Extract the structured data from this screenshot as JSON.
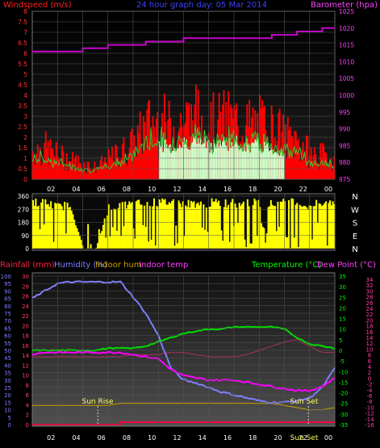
{
  "header": {
    "title": "24 hour graph day: 05 Mar 2014",
    "wind_label": "Windspeed (m/s)",
    "baro_label": "Barometer (hpa)"
  },
  "hour_ticks": [
    "02",
    "04",
    "06",
    "08",
    "10",
    "12",
    "14",
    "16",
    "18",
    "20",
    "22",
    "00"
  ],
  "colors": {
    "grid": "#555555",
    "wind": "#ff0000",
    "gust": "#33cc33",
    "baro": "#cc00cc",
    "direction": "#ffff00",
    "rain": "#ff0040",
    "humidity": "#8080ff",
    "indoor_hum": "#c8a000",
    "indoor_temp": "#aa3060",
    "temperature": "#00dd00",
    "dew_point": "#ff00ff"
  },
  "chart_data": [
    {
      "type": "area",
      "name": "wind-panel",
      "y_ticks_left": [
        "8",
        "7.5",
        "7",
        "6.5",
        "6",
        "5.5",
        "5",
        "4.5",
        "4",
        "3.5",
        "3",
        "2.5",
        "2",
        "1.5",
        "1",
        "0.5",
        "0"
      ],
      "y_ticks_right": [
        "1025",
        "1020",
        "1015",
        "1010",
        "1005",
        "1000",
        "995",
        "990",
        "985",
        "980",
        "975"
      ],
      "ylim_left": [
        0,
        8
      ],
      "ylim_right": [
        975,
        1025
      ],
      "series": [
        {
          "name": "Windspeed (m/s)",
          "x": [
            0,
            1,
            2,
            3,
            4,
            5,
            6,
            7,
            8,
            9,
            10,
            11,
            12,
            13,
            14,
            15,
            16,
            17,
            18,
            19,
            20,
            21,
            22,
            23,
            24
          ],
          "values": [
            1.5,
            1.6,
            1.2,
            1.0,
            0.8,
            0.6,
            1.0,
            1.4,
            1.8,
            2.8,
            3.0,
            2.6,
            3.0,
            3.2,
            2.8,
            3.0,
            3.0,
            2.8,
            2.8,
            2.6,
            2.2,
            2.0,
            1.3,
            1.2,
            1.0
          ]
        },
        {
          "name": "Barometer (hpa)",
          "x": [
            0,
            1,
            2,
            3,
            4,
            5,
            6,
            7,
            8,
            9,
            10,
            11,
            12,
            13,
            14,
            15,
            16,
            17,
            18,
            19,
            20,
            21,
            22,
            23,
            24
          ],
          "values": [
            1013,
            1013,
            1013,
            1013,
            1014,
            1014,
            1015,
            1015,
            1015,
            1016,
            1016,
            1016,
            1017,
            1017,
            1017,
            1017,
            1017,
            1017,
            1017,
            1018,
            1018,
            1019,
            1019,
            1020,
            1020
          ]
        }
      ]
    },
    {
      "type": "bar",
      "name": "direction-panel",
      "y_ticks_left": [
        "360",
        "270",
        "180",
        "90",
        "0"
      ],
      "y_ticks_right": [
        "N",
        "W",
        "S",
        "E",
        "N"
      ],
      "ylim": [
        0,
        360
      ],
      "series": [
        {
          "name": "Wind direction",
          "x": [
            0,
            1,
            2,
            3,
            4,
            5,
            6,
            7,
            8,
            9,
            10,
            11,
            12,
            13,
            14,
            15,
            16,
            17,
            18,
            19,
            20,
            21,
            22,
            23,
            24
          ],
          "values": [
            340,
            330,
            300,
            320,
            0,
            0,
            300,
            310,
            320,
            330,
            330,
            340,
            320,
            330,
            330,
            330,
            330,
            330,
            330,
            320,
            330,
            330,
            300,
            340,
            330
          ]
        }
      ]
    },
    {
      "type": "line",
      "name": "temp-panel",
      "labels": {
        "rain": "Rainfall (mm)",
        "humidity": "Humidity (%)",
        "indoor_hum": "Indoor hum",
        "indoor_temp": "Indoor temp",
        "temperature": "Temperature (°C)",
        "dew_point": "Dew Point (°C)",
        "sunrise": "Sun Rise",
        "sunset": "Sun Set",
        "sunset_bottom": "Sun Set"
      },
      "y_ticks_humidity": [
        "100",
        "95",
        "90",
        "85",
        "80",
        "75",
        "70",
        "65",
        "60",
        "55",
        "50",
        "45",
        "40",
        "35",
        "30",
        "25",
        "20",
        "15",
        "10",
        "5",
        "0"
      ],
      "y_ticks_rain": [
        "30",
        "28",
        "26",
        "24",
        "22",
        "20",
        "18",
        "16",
        "14",
        "12",
        "10",
        "8",
        "6",
        "4",
        "2",
        "0"
      ],
      "y_ticks_temp": [
        "35",
        "30",
        "25",
        "20",
        "15",
        "10",
        "5",
        "0",
        "-5",
        "-10",
        "-15",
        "-20",
        "-25",
        "-30",
        "-35"
      ],
      "y_ticks_indoor": [
        "34",
        "32",
        "30",
        "28",
        "26",
        "24",
        "22",
        "20",
        "18",
        "16",
        "14",
        "12",
        "10",
        "8",
        "6",
        "4",
        "2",
        "0",
        "-2",
        "-4",
        "-6",
        "-8",
        "-10",
        "-12",
        "-14",
        "-16"
      ],
      "ylim_humidity": [
        0,
        100
      ],
      "ylim_temp": [
        -35,
        35
      ],
      "series": [
        {
          "name": "Humidity (%)",
          "x": [
            0,
            1,
            2,
            3,
            4,
            5,
            6,
            7,
            8,
            9,
            10,
            11,
            12,
            13,
            14,
            15,
            16,
            17,
            18,
            19,
            20,
            21,
            22,
            23,
            24
          ],
          "values": [
            85,
            90,
            95,
            96,
            96,
            96,
            96,
            96,
            86,
            75,
            60,
            38,
            30,
            28,
            25,
            22,
            20,
            18,
            16,
            15,
            15,
            16,
            18,
            25,
            38
          ]
        },
        {
          "name": "Temperature (°C)",
          "x": [
            0,
            1,
            2,
            3,
            4,
            5,
            6,
            7,
            8,
            9,
            10,
            11,
            12,
            13,
            14,
            15,
            16,
            17,
            18,
            19,
            20,
            21,
            22,
            23,
            24
          ],
          "values": [
            0,
            0,
            0,
            0,
            0,
            0,
            1,
            1,
            1,
            2,
            4,
            6,
            8,
            9,
            10,
            10,
            11,
            11,
            11,
            11,
            10,
            6,
            3,
            2,
            1
          ]
        },
        {
          "name": "Dew Point (°C)",
          "x": [
            0,
            1,
            2,
            3,
            4,
            5,
            6,
            7,
            8,
            9,
            10,
            11,
            12,
            13,
            14,
            15,
            16,
            17,
            18,
            19,
            20,
            21,
            22,
            23,
            24
          ],
          "values": [
            -2,
            -1,
            -1,
            -1,
            -1,
            -1,
            -1,
            -1,
            -2,
            -3,
            -4,
            -9,
            -12,
            -13,
            -14,
            -14,
            -14,
            -15,
            -16,
            -17,
            -18,
            -19,
            -19,
            -17,
            -13
          ]
        },
        {
          "name": "Indoor temp",
          "x": [
            0,
            1,
            2,
            3,
            4,
            5,
            6,
            7,
            8,
            9,
            10,
            11,
            12,
            13,
            14,
            15,
            16,
            17,
            18,
            19,
            20,
            21,
            22,
            23,
            24
          ],
          "values": [
            -3,
            -3,
            -3,
            -3,
            -3,
            -3,
            -3,
            -3,
            -2,
            -2,
            -2,
            -1,
            -1,
            -2,
            -3,
            -3,
            -3,
            -2,
            0,
            2,
            4,
            5,
            2,
            -1,
            -1
          ]
        },
        {
          "name": "Indoor hum",
          "x": [
            0,
            1,
            2,
            3,
            4,
            5,
            6,
            7,
            8,
            9,
            10,
            11,
            12,
            13,
            14,
            15,
            16,
            17,
            18,
            19,
            20,
            21,
            22,
            23,
            24
          ],
          "values": [
            -26,
            -26,
            -26,
            -26,
            -26,
            -26,
            -26,
            -25,
            -25,
            -25,
            -25,
            -25,
            -25,
            -25,
            -25,
            -25,
            -25,
            -25,
            -25,
            -25,
            -26,
            -27,
            -28,
            -28,
            -27
          ]
        },
        {
          "name": "Rainfall (mm)",
          "x": [
            0,
            1,
            2,
            3,
            4,
            5,
            6,
            7,
            8,
            9,
            10,
            11,
            12,
            13,
            14,
            15,
            16,
            17,
            18,
            19,
            20,
            21,
            22,
            23,
            24
          ],
          "values": [
            0,
            0,
            0,
            0,
            0,
            0,
            0,
            1,
            1,
            1,
            1,
            1,
            1,
            1,
            1,
            1,
            1,
            1,
            1,
            1,
            1,
            1,
            1,
            1,
            1
          ]
        }
      ],
      "sunrise_hour": 5.2,
      "sunset_hour": 21.9
    }
  ]
}
